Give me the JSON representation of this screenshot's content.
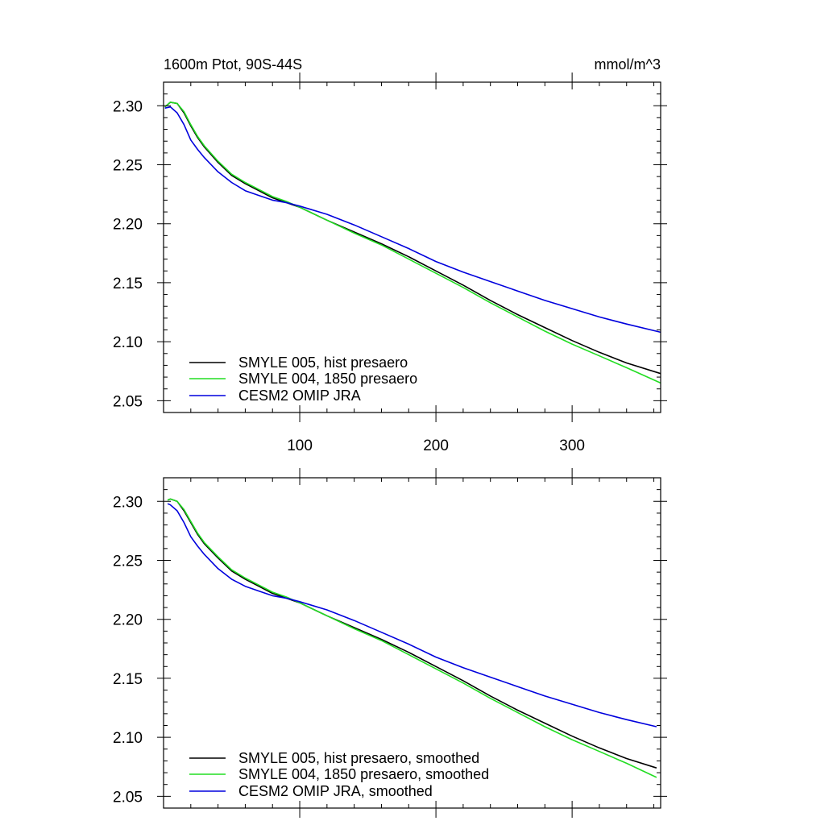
{
  "chart_data": [
    {
      "type": "line",
      "title": "1600m Ptot, 90S-44S",
      "units_label": "mmol/m^3",
      "xlim": [
        0,
        365
      ],
      "ylim": [
        2.04,
        2.32
      ],
      "yticks": [
        2.05,
        2.1,
        2.15,
        2.2,
        2.25,
        2.3
      ],
      "ytick_labels": [
        "2.05",
        "2.10",
        "2.15",
        "2.20",
        "2.25",
        "2.30"
      ],
      "xticks": [
        100,
        200,
        300
      ],
      "xtick_labels": [
        "100",
        "200",
        "300"
      ],
      "x": [
        1,
        5,
        10,
        15,
        20,
        25,
        30,
        40,
        50,
        60,
        70,
        80,
        90,
        100,
        120,
        140,
        160,
        180,
        200,
        220,
        240,
        260,
        280,
        300,
        320,
        340,
        365
      ],
      "legend": "bottom-left",
      "series": [
        {
          "name": "SMYLE 005, hist presaero",
          "color": "#000000",
          "values": [
            2.299,
            2.303,
            2.302,
            2.294,
            2.283,
            2.273,
            2.265,
            2.252,
            2.241,
            2.234,
            2.228,
            2.222,
            2.218,
            2.214,
            2.203,
            2.193,
            2.183,
            2.172,
            2.16,
            2.148,
            2.135,
            2.123,
            2.112,
            2.101,
            2.091,
            2.082,
            2.073
          ]
        },
        {
          "name": "SMYLE 004, 1850 presaero",
          "color": "#22dd22",
          "values": [
            2.299,
            2.303,
            2.302,
            2.295,
            2.284,
            2.274,
            2.266,
            2.253,
            2.242,
            2.235,
            2.229,
            2.223,
            2.219,
            2.214,
            2.203,
            2.192,
            2.182,
            2.17,
            2.158,
            2.146,
            2.133,
            2.121,
            2.109,
            2.098,
            2.088,
            2.078,
            2.065
          ]
        },
        {
          "name": "CESM2 OMIP JRA",
          "color": "#0000dd",
          "values": [
            2.298,
            2.299,
            2.294,
            2.284,
            2.271,
            2.263,
            2.256,
            2.244,
            2.235,
            2.228,
            2.224,
            2.22,
            2.218,
            2.215,
            2.208,
            2.199,
            2.189,
            2.179,
            2.168,
            2.159,
            2.151,
            2.143,
            2.135,
            2.128,
            2.121,
            2.115,
            2.108
          ]
        }
      ]
    },
    {
      "type": "line",
      "title": "",
      "units_label": "",
      "xlim": [
        0,
        365
      ],
      "ylim": [
        2.04,
        2.32
      ],
      "yticks": [
        2.05,
        2.1,
        2.15,
        2.2,
        2.25,
        2.3
      ],
      "ytick_labels": [
        "2.05",
        "2.10",
        "2.15",
        "2.20",
        "2.25",
        "2.30"
      ],
      "xticks": [
        100,
        200,
        300
      ],
      "xtick_labels": [],
      "x": [
        3,
        5,
        10,
        15,
        20,
        25,
        30,
        40,
        50,
        60,
        70,
        80,
        90,
        100,
        120,
        140,
        160,
        180,
        200,
        220,
        240,
        260,
        280,
        300,
        320,
        340,
        362
      ],
      "legend": "bottom-left",
      "series": [
        {
          "name": "SMYLE 005, hist presaero, smoothed",
          "color": "#000000",
          "values": [
            2.301,
            2.302,
            2.3,
            2.292,
            2.282,
            2.272,
            2.264,
            2.252,
            2.241,
            2.234,
            2.228,
            2.222,
            2.218,
            2.214,
            2.203,
            2.193,
            2.183,
            2.172,
            2.16,
            2.148,
            2.135,
            2.123,
            2.112,
            2.101,
            2.091,
            2.082,
            2.074
          ]
        },
        {
          "name": "SMYLE 004, 1850 presaero, smoothed",
          "color": "#22dd22",
          "values": [
            2.301,
            2.302,
            2.3,
            2.293,
            2.283,
            2.273,
            2.265,
            2.253,
            2.242,
            2.235,
            2.229,
            2.223,
            2.219,
            2.214,
            2.203,
            2.192,
            2.182,
            2.17,
            2.158,
            2.146,
            2.133,
            2.121,
            2.109,
            2.098,
            2.088,
            2.078,
            2.066
          ]
        },
        {
          "name": "CESM2 OMIP JRA, smoothed",
          "color": "#0000dd",
          "values": [
            2.298,
            2.297,
            2.292,
            2.282,
            2.27,
            2.262,
            2.255,
            2.243,
            2.234,
            2.228,
            2.224,
            2.22,
            2.218,
            2.215,
            2.208,
            2.199,
            2.189,
            2.179,
            2.168,
            2.159,
            2.151,
            2.143,
            2.135,
            2.128,
            2.121,
            2.115,
            2.109
          ]
        }
      ]
    }
  ]
}
